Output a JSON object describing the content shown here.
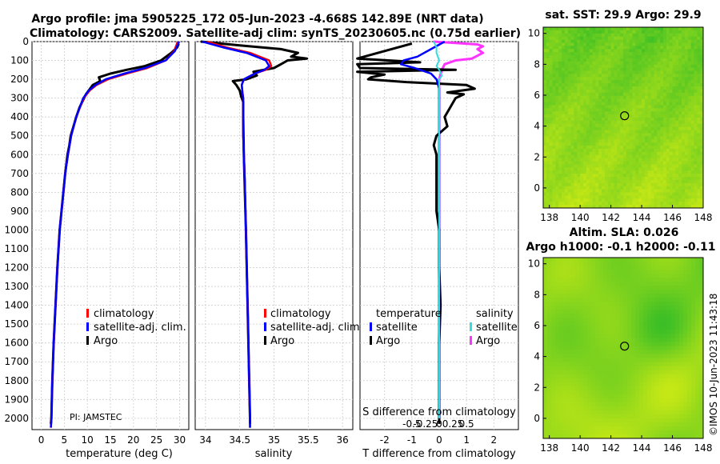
{
  "header": {
    "line1": "Argo profile: jma 5905225_172 05-Jun-2023 -4.668S 142.89E (NRT data)",
    "line2": "Climatology: CARS2009. Satellite-adj clim: synTS_20230605.nc (0.75d earlier)"
  },
  "colors": {
    "climatology": "#ff0000",
    "satellite_adj": "#0000ff",
    "argo": "#000000",
    "sal_satellite": "#33dddd",
    "sal_argo": "#ff33ff"
  },
  "depth_axis": {
    "ticks": [
      0,
      100,
      200,
      300,
      400,
      500,
      600,
      700,
      800,
      900,
      1000,
      1100,
      1200,
      1300,
      1400,
      1500,
      1600,
      1700,
      1800,
      1900,
      2000
    ],
    "range": [
      0,
      2060
    ]
  },
  "legend_common": {
    "climatology": "climatology",
    "satellite": "satellite-adj. clim.",
    "argo": "Argo"
  },
  "legend_diff": {
    "temperature_title": "temperature",
    "salinity_title": "salinity",
    "satellite": "satellite",
    "argo": "Argo"
  },
  "pi_label": "PI: JAMSTEC",
  "credit": "©IMOS 10-Jun-2023 11:43:18",
  "chart_data": [
    {
      "type": "line",
      "name": "temperature-profile",
      "xlabel": "temperature (deg C)",
      "ylabel": "depth",
      "xlim": [
        -2,
        32
      ],
      "xticks": [
        0,
        5,
        10,
        15,
        20,
        25,
        30
      ],
      "series": [
        {
          "name": "climatology",
          "depth": [
            0,
            50,
            100,
            140,
            170,
            200,
            230,
            260,
            300,
            400,
            500,
            600,
            700,
            800,
            900,
            1000,
            1200,
            1400,
            1600,
            1800,
            2000,
            2050
          ],
          "values": [
            29.6,
            28.8,
            27.0,
            23.0,
            18.5,
            14.5,
            12.0,
            10.5,
            9.2,
            7.6,
            6.5,
            5.8,
            5.2,
            4.8,
            4.4,
            4.0,
            3.5,
            3.1,
            2.7,
            2.4,
            2.2,
            2.1
          ]
        },
        {
          "name": "satellite-adj. clim.",
          "depth": [
            0,
            50,
            100,
            140,
            170,
            200,
            230,
            260,
            300,
            400,
            500,
            600,
            700,
            800,
            900,
            1000,
            1200,
            1400,
            1600,
            1800,
            2000,
            2050
          ],
          "values": [
            29.9,
            29.0,
            27.0,
            22.5,
            18.0,
            14.0,
            11.8,
            10.3,
            9.1,
            7.6,
            6.5,
            5.8,
            5.2,
            4.8,
            4.4,
            4.0,
            3.5,
            3.1,
            2.7,
            2.4,
            2.2,
            2.1
          ]
        },
        {
          "name": "Argo",
          "depth": [
            10,
            30,
            60,
            100,
            130,
            150,
            170,
            190,
            210,
            230,
            250,
            280,
            300,
            350,
            400,
            450,
            500,
            550,
            600,
            700,
            800,
            900,
            1000,
            1200,
            1400,
            1600,
            1800,
            2000,
            2030
          ],
          "values": [
            29.8,
            29.5,
            28.2,
            26.0,
            22.5,
            18.5,
            15.0,
            12.5,
            12.8,
            11.2,
            10.6,
            9.7,
            9.3,
            8.3,
            7.6,
            7.0,
            6.4,
            6.1,
            5.7,
            5.2,
            4.8,
            4.4,
            4.0,
            3.5,
            3.1,
            2.7,
            2.4,
            2.2,
            2.1
          ]
        }
      ]
    },
    {
      "type": "line",
      "name": "salinity-profile",
      "xlabel": "salinity",
      "ylabel": "depth",
      "xlim": [
        33.85,
        36.15
      ],
      "xticks": [
        34,
        34.5,
        35,
        35.5,
        36
      ],
      "series": [
        {
          "name": "climatology",
          "depth": [
            0,
            30,
            60,
            100,
            130,
            150,
            170,
            200,
            230,
            270,
            300,
            400,
            500,
            700,
            1000,
            1500,
            2000,
            2050
          ],
          "values": [
            34.02,
            34.3,
            34.65,
            34.93,
            34.96,
            34.88,
            34.72,
            34.56,
            34.53,
            34.54,
            34.55,
            34.55,
            34.55,
            34.57,
            34.59,
            34.62,
            34.65,
            34.65
          ]
        },
        {
          "name": "satellite-adj. clim.",
          "depth": [
            0,
            30,
            60,
            100,
            130,
            150,
            170,
            200,
            230,
            270,
            300,
            400,
            500,
            700,
            1000,
            1500,
            2000,
            2050
          ],
          "values": [
            33.95,
            34.25,
            34.6,
            34.88,
            34.93,
            34.86,
            34.72,
            34.56,
            34.53,
            34.54,
            34.55,
            34.55,
            34.55,
            34.57,
            34.59,
            34.62,
            34.65,
            34.65
          ]
        },
        {
          "name": "Argo",
          "depth": [
            0,
            20,
            40,
            60,
            80,
            90,
            100,
            120,
            140,
            160,
            180,
            200,
            210,
            230,
            260,
            290,
            320,
            400,
            600,
            1000,
            1500,
            2000,
            2030
          ],
          "values": [
            33.93,
            34.5,
            35.1,
            35.35,
            35.25,
            35.48,
            35.2,
            35.1,
            35.0,
            34.7,
            34.75,
            34.6,
            34.4,
            34.45,
            34.5,
            34.52,
            34.55,
            34.55,
            34.56,
            34.59,
            34.62,
            34.65,
            34.65
          ]
        }
      ]
    },
    {
      "type": "line",
      "name": "difference-profile",
      "xlabel": "T difference from climatology",
      "top_label": "S difference from climatology",
      "xlim": [
        -2.9,
        2.9
      ],
      "xticks": [
        -2,
        -1,
        0,
        1,
        2
      ],
      "sticks_labels": [
        "-0.5",
        "-0.25",
        "0",
        "0.25",
        "0.5"
      ],
      "series": [
        {
          "name": "temperature satellite",
          "depth": [
            0,
            40,
            80,
            100,
            120,
            140,
            170,
            200,
            250,
            300,
            500,
            1000,
            2000
          ],
          "values": [
            0.2,
            -0.3,
            -0.8,
            -1.3,
            -1.4,
            -0.9,
            -0.3,
            -0.1,
            0.0,
            0.0,
            0.0,
            0.0,
            0.0
          ]
        },
        {
          "name": "temperature Argo",
          "depth": [
            10,
            50,
            90,
            110,
            120,
            140,
            150,
            160,
            175,
            190,
            200,
            215,
            230,
            250,
            270,
            280,
            300,
            350,
            400,
            450,
            500,
            550,
            600,
            700,
            800,
            900,
            1000,
            1200,
            1400,
            1600,
            1800,
            2000,
            2030
          ],
          "values": [
            -1.0,
            -2.0,
            -3.0,
            -0.7,
            -3.0,
            -2.9,
            0.6,
            -3.0,
            -2.0,
            -2.5,
            -2.6,
            -1.2,
            1.0,
            1.3,
            0.3,
            0.9,
            0.6,
            0.4,
            0.2,
            0.3,
            -0.1,
            -0.2,
            -0.1,
            -0.1,
            -0.1,
            -0.1,
            0.0,
            0.0,
            0.05,
            0.0,
            0.0,
            0.0,
            0.0
          ]
        },
        {
          "name": "salinity satellite",
          "depth": [
            0,
            30,
            60,
            100,
            130,
            150,
            180,
            200,
            250,
            300,
            500,
            1000,
            2000
          ],
          "values": [
            -0.1,
            -0.05,
            -0.05,
            0.0,
            -0.05,
            0.0,
            0.05,
            0.0,
            0.0,
            0.0,
            0.0,
            0.0,
            0.0
          ]
        },
        {
          "name": "salinity Argo",
          "depth": [
            0,
            15,
            25,
            40,
            60,
            90,
            100,
            120,
            150,
            200,
            250,
            300,
            500,
            1000,
            1500,
            2000,
            2030
          ],
          "values": [
            -0.1,
            0.7,
            0.8,
            0.7,
            0.8,
            0.6,
            0.3,
            0.1,
            0.05,
            0.0,
            0.0,
            0.0,
            0.0,
            0.0,
            0.0,
            0.0,
            0.0
          ]
        }
      ]
    },
    {
      "type": "heatmap",
      "name": "sst-map",
      "title": "sat. SST: 29.9 Argo: 29.9",
      "xlim": [
        137.6,
        148
      ],
      "ylim": [
        -1.3,
        10.4
      ],
      "xticks": [
        138,
        140,
        142,
        144,
        146,
        148
      ],
      "yticks": [
        0,
        2,
        4,
        6,
        8,
        10
      ],
      "marker": {
        "lon": 142.89,
        "lat": 4.67
      }
    },
    {
      "type": "heatmap",
      "name": "sla-map",
      "title_line1": "Altim. SLA: 0.026",
      "title_line2": "Argo h1000: -0.1 h2000: -0.11",
      "xlim": [
        137.6,
        148
      ],
      "ylim": [
        -1.3,
        10.4
      ],
      "xticks": [
        138,
        140,
        142,
        144,
        146,
        148
      ],
      "yticks": [
        0,
        2,
        4,
        6,
        8,
        10
      ],
      "marker": {
        "lon": 142.89,
        "lat": 4.67
      }
    }
  ]
}
